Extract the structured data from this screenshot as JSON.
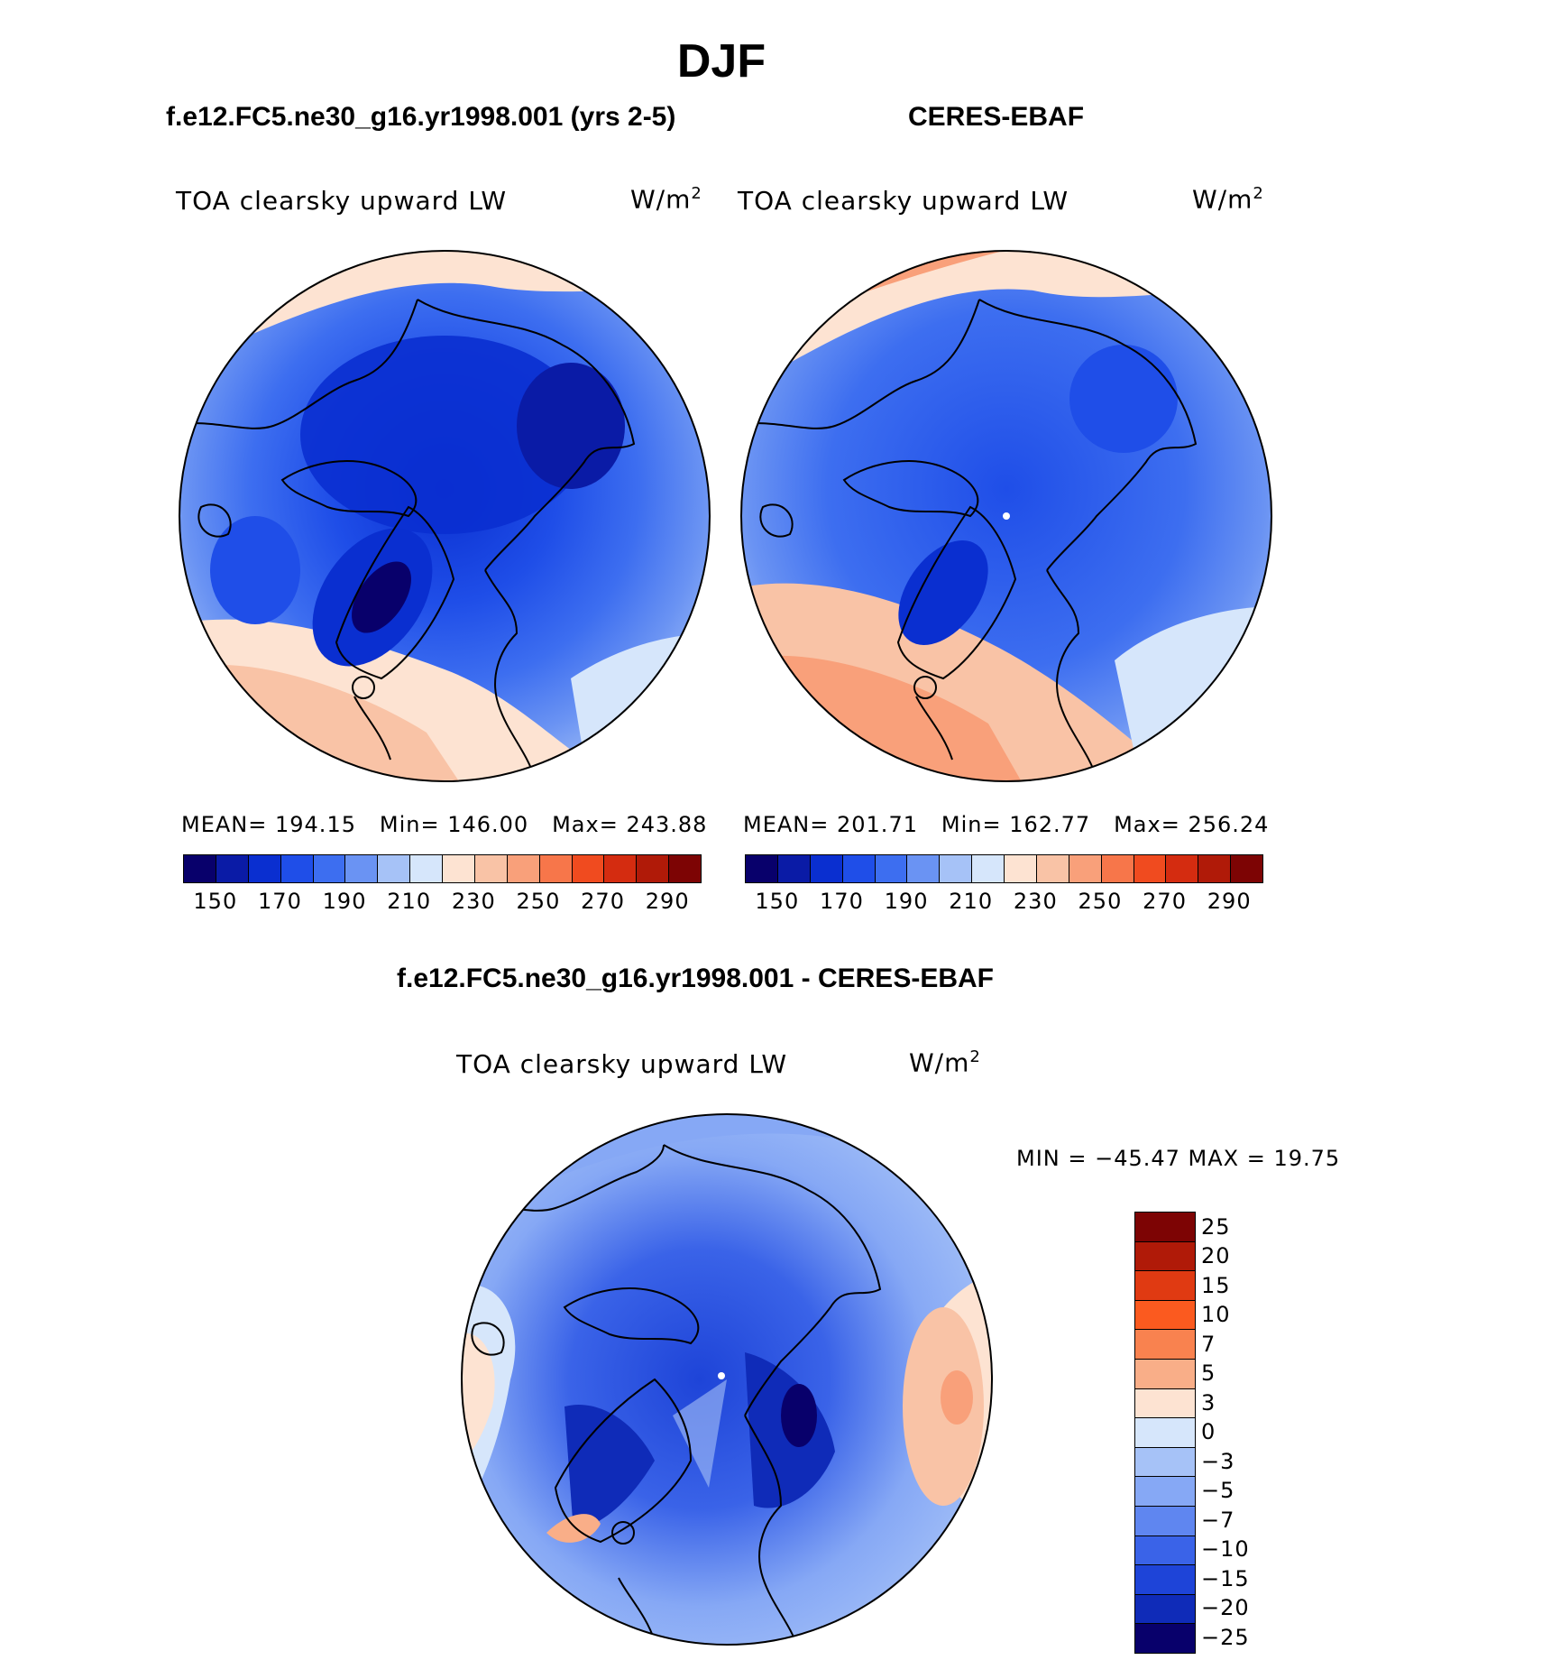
{
  "title": "DJF",
  "panels": [
    {
      "id": "model",
      "title": "f.e12.FC5.ne30_g16.yr1998.001 (yrs 2-5)",
      "variable": "TOA clearsky upward LW",
      "units": "W/m",
      "units_exp": "2",
      "stats": {
        "mean_label": "MEAN=",
        "mean": "194.15",
        "min_label": "Min=",
        "min": "146.00",
        "max_label": "Max=",
        "max": "243.88"
      }
    },
    {
      "id": "obs",
      "title": "CERES-EBAF",
      "variable": "TOA clearsky upward LW",
      "units": "W/m",
      "units_exp": "2",
      "stats": {
        "mean_label": "MEAN=",
        "mean": "201.71",
        "min_label": "Min=",
        "min": "162.77",
        "max_label": "Max=",
        "max": "256.24"
      }
    }
  ],
  "diff_panel": {
    "title": "f.e12.FC5.ne30_g16.yr1998.001 - CERES-EBAF",
    "variable": "TOA clearsky upward LW",
    "units": "W/m",
    "units_exp": "2",
    "min_max_text": "MIN = −45.47 MAX =  19.75"
  },
  "colorbar_top": {
    "colors": [
      "#08006b",
      "#0a1ba6",
      "#0a2fd0",
      "#1f4ee8",
      "#3d6ef0",
      "#6a93f3",
      "#a6c2f7",
      "#d6e6fb",
      "#fde3d2",
      "#f9c3a6",
      "#f9a07a",
      "#f7764a",
      "#f04b1f",
      "#d42c10",
      "#b01a08",
      "#7d0404"
    ],
    "tick_labels": [
      "150",
      "170",
      "190",
      "210",
      "230",
      "250",
      "270",
      "290"
    ]
  },
  "colorbar_diff": {
    "colors": [
      "#7d0404",
      "#b01a08",
      "#e03a12",
      "#fb5a1f",
      "#f9824f",
      "#f9ae88",
      "#fde3d2",
      "#d6e6fb",
      "#a6c2f7",
      "#86a8f5",
      "#5f86f0",
      "#3a63e8",
      "#1e44d8",
      "#0f2bb8",
      "#08006b"
    ],
    "tick_labels": [
      "25",
      "20",
      "15",
      "10",
      "7",
      "5",
      "3",
      "0",
      "−3",
      "−5",
      "−7",
      "−10",
      "−15",
      "−20",
      "−25"
    ]
  },
  "chart_data": [
    {
      "type": "heatmap",
      "projection": "north polar stereographic",
      "title": "f.e12.FC5.ne30_g16.yr1998.001 (yrs 2-5)",
      "variable": "TOA clearsky upward LW",
      "units": "W/m2",
      "color_levels": [
        150,
        160,
        170,
        180,
        190,
        200,
        210,
        220,
        230,
        240,
        250,
        260,
        270,
        280,
        290
      ],
      "mean": 194.15,
      "min": 146.0,
      "max": 243.88
    },
    {
      "type": "heatmap",
      "projection": "north polar stereographic",
      "title": "CERES-EBAF",
      "variable": "TOA clearsky upward LW",
      "units": "W/m2",
      "color_levels": [
        150,
        160,
        170,
        180,
        190,
        200,
        210,
        220,
        230,
        240,
        250,
        260,
        270,
        280,
        290
      ],
      "mean": 201.71,
      "min": 162.77,
      "max": 256.24
    },
    {
      "type": "heatmap",
      "projection": "north polar stereographic",
      "title": "f.e12.FC5.ne30_g16.yr1998.001 - CERES-EBAF",
      "variable": "TOA clearsky upward LW",
      "units": "W/m2",
      "color_levels": [
        -25,
        -20,
        -15,
        -10,
        -7,
        -5,
        -3,
        0,
        3,
        5,
        7,
        10,
        15,
        20,
        25
      ],
      "min": -45.47,
      "max": 19.75
    }
  ]
}
